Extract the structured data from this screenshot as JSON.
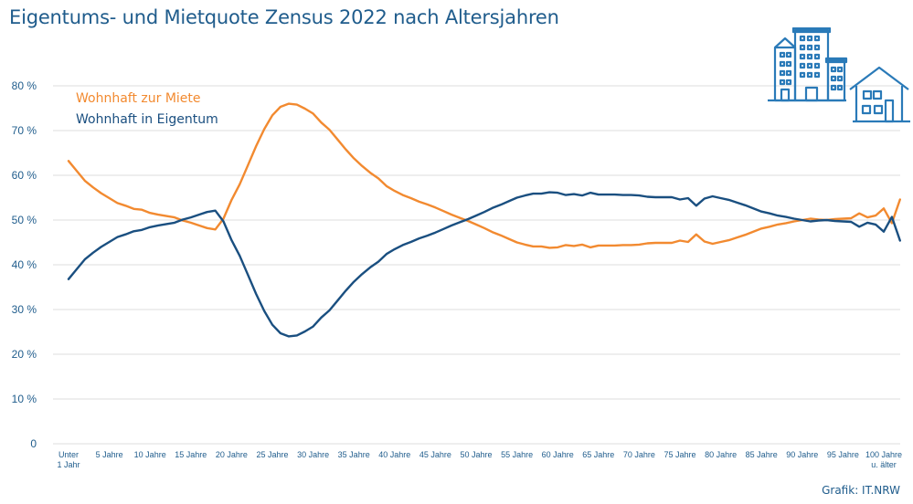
{
  "title": "Eigentums- und Mietquote Zensus 2022 nach Altersjahren",
  "source": "Grafik: IT.NRW",
  "colors": {
    "rent": "#f28a30",
    "own": "#1a4f80",
    "text": "#1f5c8c",
    "grid": "#dedede"
  },
  "icons": [
    "buildings-icon"
  ],
  "chart_data": {
    "type": "line",
    "title": "Eigentums- und Mietquote Zensus 2022 nach Altersjahren",
    "xlabel": "",
    "ylabel": "",
    "ylim": [
      0,
      80
    ],
    "ytick_values": [
      0,
      10,
      20,
      30,
      40,
      50,
      60,
      70,
      80
    ],
    "ytick_labels": [
      "0",
      "10 %",
      "20 %",
      "30 %",
      "40 %",
      "50 %",
      "60 %",
      "70 %",
      "80 %"
    ],
    "xticks": [
      {
        "age": 0,
        "label": [
          "Unter",
          "1 Jahr"
        ]
      },
      {
        "age": 5,
        "label": [
          "5 Jahre"
        ]
      },
      {
        "age": 10,
        "label": [
          "10 Jahre"
        ]
      },
      {
        "age": 15,
        "label": [
          "15 Jahre"
        ]
      },
      {
        "age": 20,
        "label": [
          "20 Jahre"
        ]
      },
      {
        "age": 25,
        "label": [
          "25 Jahre"
        ]
      },
      {
        "age": 30,
        "label": [
          "30 Jahre"
        ]
      },
      {
        "age": 35,
        "label": [
          "35 Jahre"
        ]
      },
      {
        "age": 40,
        "label": [
          "40 Jahre"
        ]
      },
      {
        "age": 45,
        "label": [
          "45 Jahre"
        ]
      },
      {
        "age": 50,
        "label": [
          "50 Jahre"
        ]
      },
      {
        "age": 55,
        "label": [
          "55 Jahre"
        ]
      },
      {
        "age": 60,
        "label": [
          "60 Jahre"
        ]
      },
      {
        "age": 65,
        "label": [
          "65 Jahre"
        ]
      },
      {
        "age": 70,
        "label": [
          "70 Jahre"
        ]
      },
      {
        "age": 75,
        "label": [
          "75 Jahre"
        ]
      },
      {
        "age": 80,
        "label": [
          "80 Jahre"
        ]
      },
      {
        "age": 85,
        "label": [
          "85 Jahre"
        ]
      },
      {
        "age": 90,
        "label": [
          "90 Jahre"
        ]
      },
      {
        "age": 95,
        "label": [
          "95 Jahre"
        ]
      },
      {
        "age": 100,
        "label": [
          "100 Jahre",
          "u. älter"
        ]
      }
    ],
    "legend": "top-left",
    "grid": true,
    "series": [
      {
        "name": "Wohnhaft zur Miete",
        "color": "#f28a30",
        "values": [
          63.2,
          61,
          58.8,
          57.3,
          56,
          54.9,
          53.8,
          53.2,
          52.5,
          52.3,
          51.6,
          51.2,
          50.9,
          50.6,
          49.9,
          49.4,
          48.8,
          48.2,
          47.9,
          50.3,
          54.5,
          58,
          62.2,
          66.5,
          70.3,
          73.4,
          75.3,
          76,
          75.8,
          74.9,
          73.8,
          71.8,
          70.2,
          68,
          65.8,
          63.8,
          62.1,
          60.6,
          59.3,
          57.6,
          56.5,
          55.6,
          54.9,
          54.1,
          53.5,
          52.8,
          52,
          51.2,
          50.5,
          49.8,
          49,
          48.2,
          47.3,
          46.6,
          45.8,
          45,
          44.5,
          44.1,
          44.1,
          43.8,
          43.9,
          44.4,
          44.2,
          44.5,
          43.9,
          44.3,
          44.3,
          44.3,
          44.4,
          44.4,
          44.5,
          44.8,
          44.9,
          44.9,
          44.9,
          45.4,
          45.1,
          46.8,
          45.2,
          44.7,
          45.1,
          45.5,
          46.1,
          46.7,
          47.4,
          48.1,
          48.5,
          49,
          49.3,
          49.7,
          50,
          50.3,
          50.1,
          50,
          50.2,
          50.3,
          50.4,
          51.5,
          50.6,
          51,
          52.6,
          49.3,
          54.6
        ]
      },
      {
        "name": "Wohnhaft in Eigentum",
        "color": "#1a4f80",
        "values": [
          36.8,
          39,
          41.2,
          42.7,
          44,
          45.1,
          46.2,
          46.8,
          47.5,
          47.8,
          48.4,
          48.8,
          49.1,
          49.4,
          50.1,
          50.6,
          51.2,
          51.8,
          52.1,
          49.7,
          45.5,
          42,
          37.8,
          33.5,
          29.7,
          26.6,
          24.7,
          24,
          24.2,
          25.1,
          26.2,
          28.2,
          29.8,
          32,
          34.2,
          36.2,
          37.9,
          39.4,
          40.7,
          42.4,
          43.5,
          44.4,
          45.1,
          45.9,
          46.5,
          47.2,
          48,
          48.8,
          49.5,
          50.2,
          51,
          51.8,
          52.7,
          53.4,
          54.2,
          55,
          55.5,
          55.9,
          55.9,
          56.2,
          56.1,
          55.6,
          55.8,
          55.5,
          56.1,
          55.7,
          55.7,
          55.7,
          55.6,
          55.6,
          55.5,
          55.2,
          55.1,
          55.1,
          55.1,
          54.6,
          54.9,
          53.2,
          54.8,
          55.3,
          54.9,
          54.5,
          53.9,
          53.3,
          52.6,
          51.9,
          51.5,
          51,
          50.7,
          50.3,
          50,
          49.7,
          49.9,
          50,
          49.8,
          49.7,
          49.6,
          48.5,
          49.4,
          49,
          47.4,
          50.7,
          45.4
        ]
      }
    ]
  }
}
